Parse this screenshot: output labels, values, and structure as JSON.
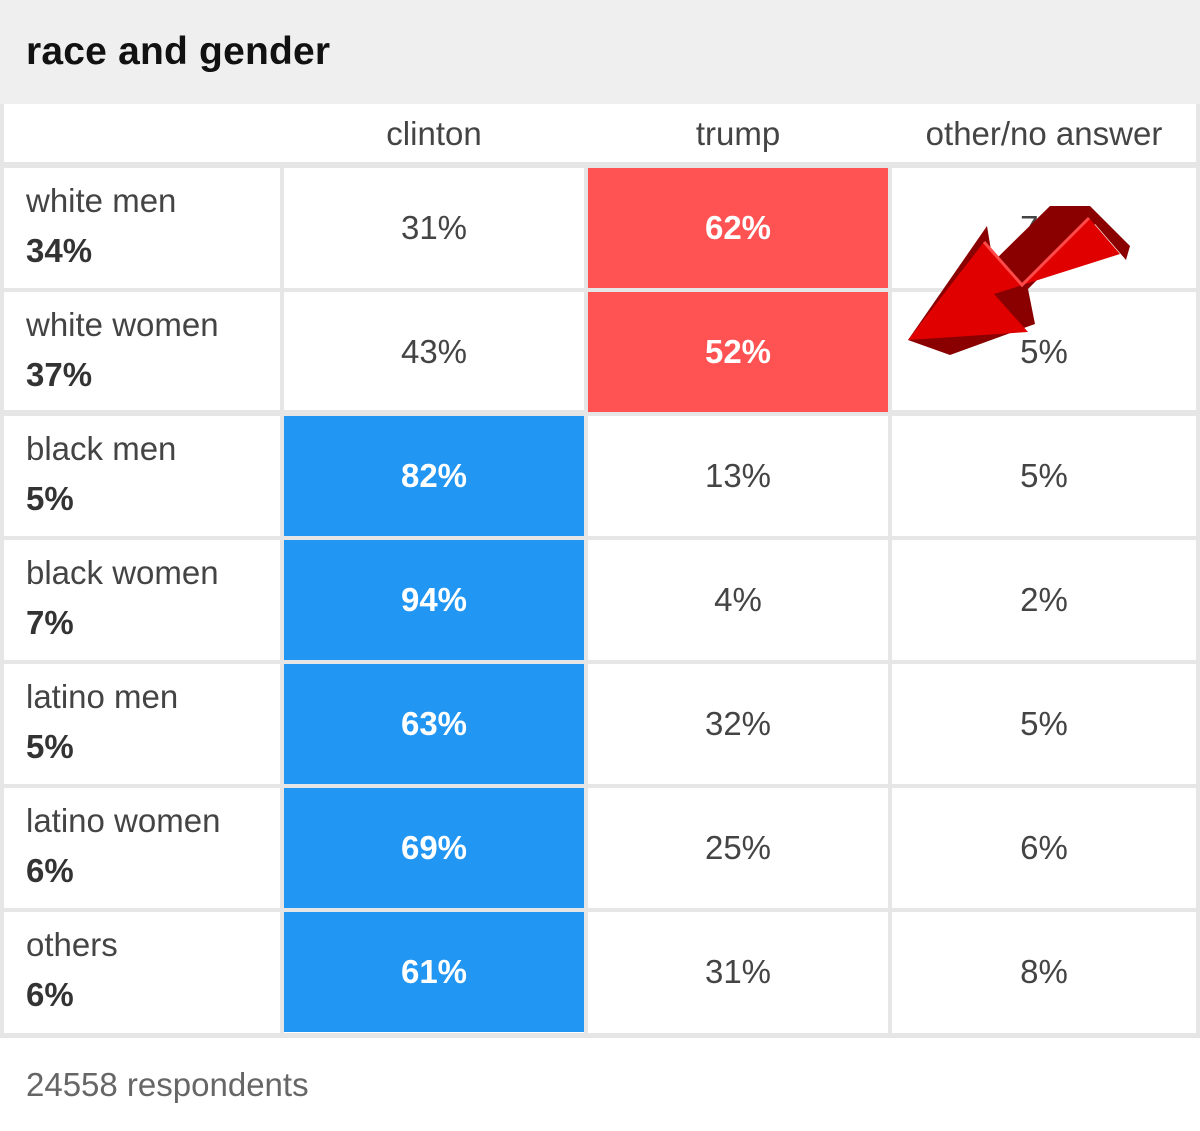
{
  "chart_data": {
    "type": "table",
    "title": "race and gender",
    "columns": [
      "clinton",
      "trump",
      "other/no answer"
    ],
    "rows": [
      {
        "group": "white men",
        "share": "34%",
        "values": [
          "31%",
          "62%",
          "7%"
        ],
        "winner": 1
      },
      {
        "group": "white women",
        "share": "37%",
        "values": [
          "43%",
          "52%",
          "5%"
        ],
        "winner": 1
      },
      {
        "group": "black men",
        "share": "5%",
        "values": [
          "82%",
          "13%",
          "5%"
        ],
        "winner": 0
      },
      {
        "group": "black women",
        "share": "7%",
        "values": [
          "94%",
          "4%",
          "2%"
        ],
        "winner": 0
      },
      {
        "group": "latino men",
        "share": "5%",
        "values": [
          "63%",
          "32%",
          "5%"
        ],
        "winner": 0
      },
      {
        "group": "latino women",
        "share": "6%",
        "values": [
          "69%",
          "25%",
          "6%"
        ],
        "winner": 0
      },
      {
        "group": "others",
        "share": "6%",
        "values": [
          "61%",
          "31%",
          "8%"
        ],
        "winner": 0
      }
    ],
    "footer": "24558 respondents",
    "colors": {
      "clinton_win": "#2196f3",
      "trump_win": "#ff5252",
      "arrow": "#dd0000",
      "header_bg": "#efefef",
      "grid": "#e6e6e6"
    }
  },
  "annotation": {
    "icon": "arrow-icon"
  }
}
